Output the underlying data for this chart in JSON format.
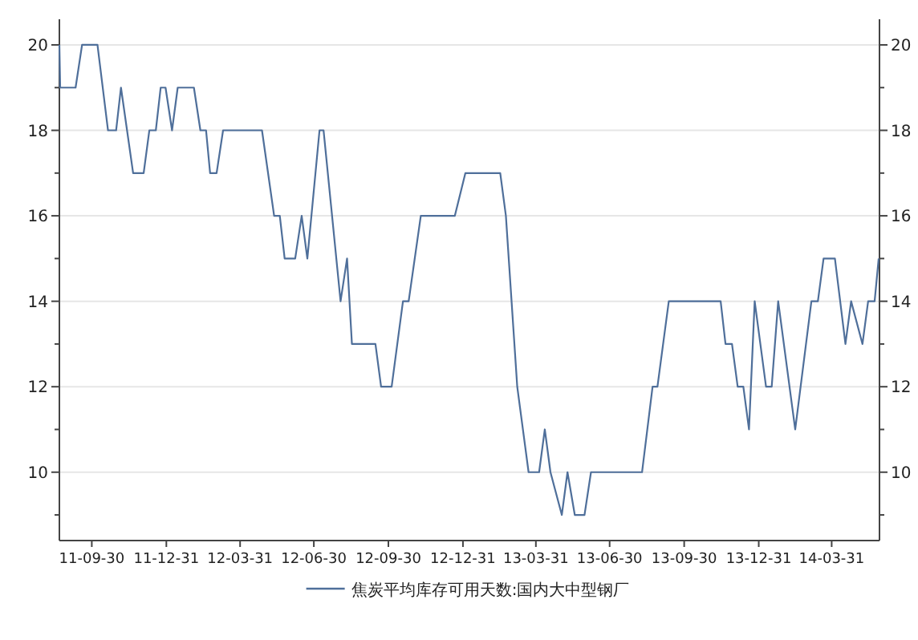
{
  "chart_data": {
    "type": "line",
    "legend": "bottom",
    "grid": "y",
    "line_style": "solid",
    "marker": "none",
    "xlim": [
      "2011-08-21",
      "2014-05-29"
    ],
    "xticks": [
      {
        "value": "2011-09-30",
        "label": "11-09-30"
      },
      {
        "value": "2011-12-31",
        "label": "11-12-31"
      },
      {
        "value": "2012-03-31",
        "label": "12-03-31"
      },
      {
        "value": "2012-06-30",
        "label": "12-06-30"
      },
      {
        "value": "2012-09-30",
        "label": "12-09-30"
      },
      {
        "value": "2012-12-31",
        "label": "12-12-31"
      },
      {
        "value": "2013-03-31",
        "label": "13-03-31"
      },
      {
        "value": "2013-06-30",
        "label": "13-06-30"
      },
      {
        "value": "2013-09-30",
        "label": "13-09-30"
      },
      {
        "value": "2013-12-31",
        "label": "13-12-31"
      },
      {
        "value": "2014-03-31",
        "label": "14-03-31"
      }
    ],
    "ylim": [
      8.4,
      20.6
    ],
    "yticks": [
      {
        "value": 9,
        "label": null
      },
      10,
      {
        "value": 11,
        "label": null
      },
      12,
      {
        "value": 13,
        "label": null
      },
      14,
      {
        "value": 15,
        "label": null
      },
      16,
      {
        "value": 17,
        "label": null
      },
      18,
      {
        "value": 19,
        "label": null
      },
      20
    ],
    "y2lim": [
      8.4,
      20.6
    ],
    "y2ticks": [
      {
        "value": 9,
        "label": null
      },
      10,
      {
        "value": 11,
        "label": null
      },
      12,
      {
        "value": 13,
        "label": null
      },
      14,
      {
        "value": 15,
        "label": null
      },
      16,
      {
        "value": 17,
        "label": null
      },
      18,
      {
        "value": 19,
        "label": null
      },
      20
    ],
    "series": [
      {
        "name": "焦炭平均库存可用天数:国内大中型钢厂",
        "color": "#4f6f9a",
        "x": [
          "2011-08-21",
          "2011-08-22",
          "2011-09-10",
          "2011-09-18",
          "2011-10-07",
          "2011-10-20",
          "2011-10-30",
          "2011-11-05",
          "2011-11-20",
          "2011-12-03",
          "2011-12-10",
          "2011-12-18",
          "2011-12-24",
          "2011-12-30",
          "2012-01-07",
          "2012-01-14",
          "2012-02-03",
          "2012-02-11",
          "2012-02-18",
          "2012-02-23",
          "2012-03-02",
          "2012-03-10",
          "2012-04-27",
          "2012-05-12",
          "2012-05-19",
          "2012-05-25",
          "2012-06-07",
          "2012-06-15",
          "2012-06-22",
          "2012-07-07",
          "2012-07-12",
          "2012-08-02",
          "2012-08-10",
          "2012-08-16",
          "2012-09-14",
          "2012-09-21",
          "2012-10-04",
          "2012-10-18",
          "2012-10-25",
          "2012-11-09",
          "2012-12-21",
          "2013-01-03",
          "2013-02-15",
          "2013-02-22",
          "2013-03-08",
          "2013-03-22",
          "2013-04-04",
          "2013-04-11",
          "2013-04-18",
          "2013-05-02",
          "2013-05-09",
          "2013-05-18",
          "2013-05-30",
          "2013-06-07",
          "2013-08-09",
          "2013-08-22",
          "2013-08-28",
          "2013-09-11",
          "2013-11-14",
          "2013-11-20",
          "2013-11-28",
          "2013-12-05",
          "2013-12-12",
          "2013-12-19",
          "2013-12-26",
          "2014-01-09",
          "2014-01-16",
          "2014-01-24",
          "2014-02-14",
          "2014-03-06",
          "2014-03-14",
          "2014-03-21",
          "2014-04-04",
          "2014-04-17",
          "2014-04-24",
          "2014-05-08",
          "2014-05-15",
          "2014-05-23",
          "2014-05-28"
        ],
        "values": [
          20,
          19,
          19,
          20,
          20,
          18,
          18,
          19,
          17,
          17,
          18,
          18,
          19,
          19,
          18,
          19,
          19,
          18,
          18,
          17,
          17,
          18,
          18,
          16,
          16,
          15,
          15,
          16,
          15,
          18,
          18,
          14,
          15,
          13,
          13,
          12,
          12,
          14,
          14,
          16,
          16,
          17,
          17,
          16,
          12,
          10,
          10,
          11,
          10,
          9,
          10,
          9,
          9,
          10,
          10,
          12,
          12,
          14,
          14,
          13,
          13,
          12,
          12,
          11,
          14,
          12,
          12,
          14,
          11,
          14,
          14,
          15,
          15,
          13,
          14,
          13,
          14,
          14,
          15
        ]
      }
    ]
  }
}
